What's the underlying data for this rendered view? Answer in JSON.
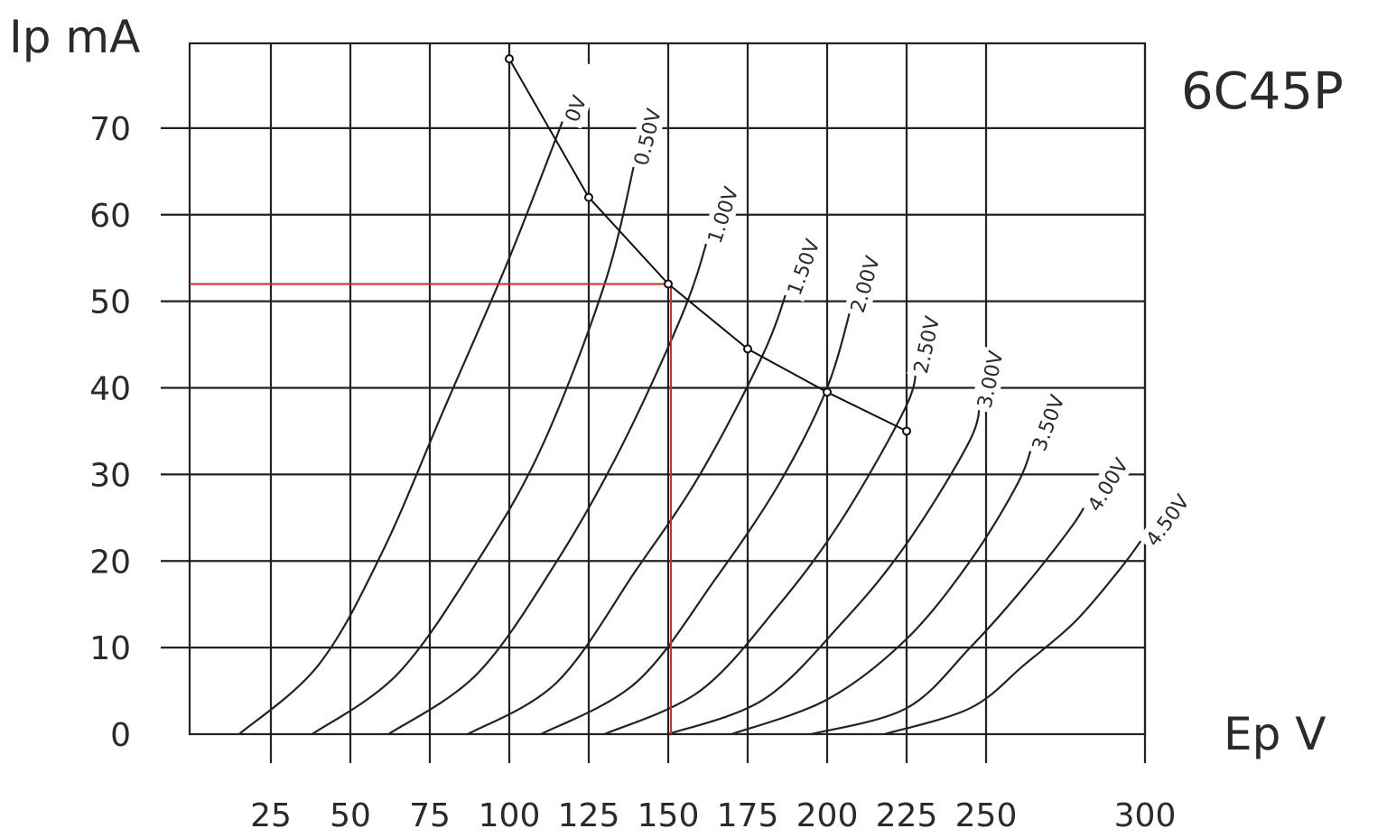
{
  "chart_data": {
    "type": "line",
    "title": "6C45P",
    "xlabel": "Ep V",
    "ylabel": "Ip mA",
    "xlim": [
      0,
      300
    ],
    "ylim": [
      0,
      80
    ],
    "x_ticks": [
      "25",
      "50",
      "75",
      "100",
      "125",
      "150",
      "175",
      "200",
      "225",
      "250",
      "300"
    ],
    "x_tick_values": [
      25,
      50,
      75,
      100,
      125,
      150,
      175,
      200,
      225,
      250,
      300
    ],
    "y_ticks": [
      "0",
      "10",
      "20",
      "30",
      "40",
      "50",
      "60",
      "70"
    ],
    "y_tick_values": [
      0,
      10,
      20,
      30,
      40,
      50,
      60,
      70
    ],
    "grid": true,
    "series": [
      {
        "name": "0V",
        "x": [
          15,
          40,
          60,
          80,
          100,
          118
        ],
        "y": [
          0,
          8,
          21,
          38,
          55,
          72
        ]
      },
      {
        "name": "0.50V",
        "x": [
          38,
          65,
          90,
          110,
          130,
          140
        ],
        "y": [
          0,
          7,
          20,
          33,
          52,
          67
        ]
      },
      {
        "name": "1.00V",
        "x": [
          62,
          90,
          115,
          135,
          155,
          163
        ],
        "y": [
          0,
          7,
          20,
          33,
          49,
          58
        ]
      },
      {
        "name": "1.50V",
        "x": [
          87,
          115,
          140,
          160,
          180,
          188
        ],
        "y": [
          0,
          6,
          19,
          30,
          44,
          52
        ]
      },
      {
        "name": "2.00V",
        "x": [
          110,
          140,
          165,
          185,
          200,
          208
        ],
        "y": [
          0,
          6,
          18,
          29,
          40,
          50
        ]
      },
      {
        "name": "2.50V",
        "x": [
          130,
          160,
          185,
          205,
          225,
          228
        ],
        "y": [
          0,
          5,
          15,
          25,
          38,
          43
        ]
      },
      {
        "name": "3.00V",
        "x": [
          150,
          180,
          205,
          225,
          245,
          248
        ],
        "y": [
          0,
          4,
          13,
          22,
          34,
          39
        ]
      },
      {
        "name": "3.50V",
        "x": [
          170,
          200,
          225,
          245,
          260,
          265
        ],
        "y": [
          0,
          4,
          11,
          20,
          29,
          34
        ]
      },
      {
        "name": "4.00V",
        "x": [
          195,
          225,
          245,
          262,
          277,
          282
        ],
        "y": [
          0,
          3,
          10,
          17,
          24,
          27
        ]
      },
      {
        "name": "4.50V",
        "x": [
          218,
          245,
          262,
          278,
          292,
          300
        ],
        "y": [
          0,
          3,
          8,
          13,
          19,
          23
        ]
      }
    ],
    "load_line": {
      "x": [
        100,
        125,
        150,
        175,
        200,
        225
      ],
      "y": [
        78,
        62,
        52,
        44.5,
        39.5,
        35
      ]
    },
    "operating_point": {
      "x": 150,
      "y": 52
    },
    "colors": {
      "grid": "#222222",
      "curves": "#222222",
      "load_line": "#111111",
      "operating_point_lines": "#d12b2b"
    }
  }
}
